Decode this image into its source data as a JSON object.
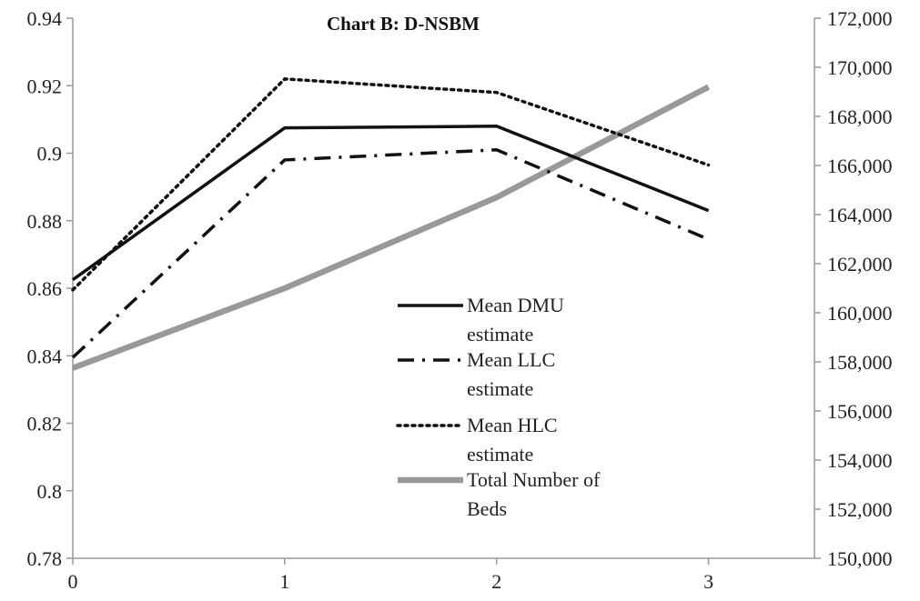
{
  "chart_data": {
    "type": "line",
    "title": "Chart  B: D-NSBM",
    "x": [
      0,
      1,
      2,
      3
    ],
    "x_tick_labels": [
      "0",
      "1",
      "2",
      "3"
    ],
    "xlim": [
      0,
      3.5
    ],
    "y_left": {
      "ylim": [
        0.78,
        0.94
      ],
      "tick_labels": [
        "0.78",
        "0.8",
        "0.82",
        "0.84",
        "0.86",
        "0.88",
        "0.9",
        "0.92",
        "0.94"
      ]
    },
    "y_right": {
      "ylim": [
        150000,
        172000
      ],
      "tick_labels": [
        "150,000",
        "152,000",
        "154,000",
        "156,000",
        "158,000",
        "160,000",
        "162,000",
        "164,000",
        "166,000",
        "168,000",
        "170,000",
        "172,000"
      ]
    },
    "series": [
      {
        "name": "Mean DMU estimate",
        "axis": "left",
        "values": [
          0.8625,
          0.9075,
          0.908,
          0.883
        ],
        "color": "#111111",
        "style": "solid"
      },
      {
        "name": "Mean LLC estimate",
        "axis": "left",
        "values": [
          0.8395,
          0.898,
          0.901,
          0.8745
        ],
        "color": "#111111",
        "style": "dash-dot"
      },
      {
        "name": "Mean HLC estimate",
        "axis": "left",
        "values": [
          0.8595,
          0.922,
          0.918,
          0.8965
        ],
        "color": "#111111",
        "style": "dotted"
      },
      {
        "name": "Total Number of Beds",
        "axis": "right",
        "values": [
          157750,
          161000,
          164700,
          169200
        ],
        "color": "#999999",
        "style": "thick-solid"
      }
    ],
    "legend": {
      "placement": "center",
      "entries": [
        {
          "lines": [
            "Mean DMU",
            "estimate"
          ]
        },
        {
          "lines": [
            "Mean LLC",
            "estimate"
          ]
        },
        {
          "lines": [
            "Mean HLC",
            "estimate"
          ]
        },
        {
          "lines": [
            "Total Number of",
            "Beds"
          ]
        }
      ]
    },
    "grid": false
  }
}
